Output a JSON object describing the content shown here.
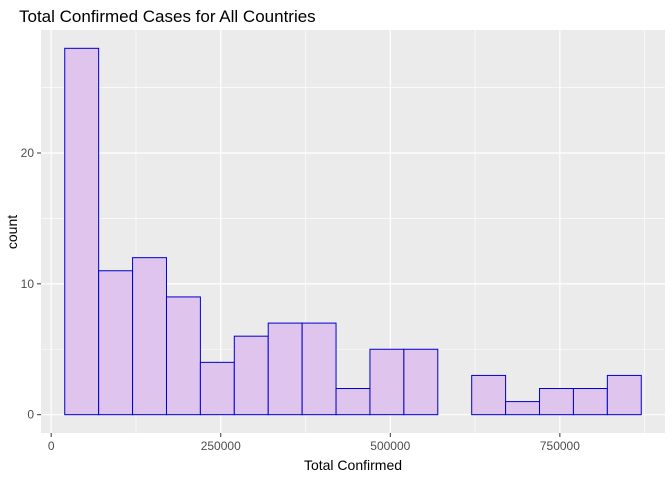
{
  "chart_data": {
    "type": "bar",
    "title": "Total Confirmed Cases for All Countries",
    "xlabel": "Total Confirmed",
    "ylabel": "count",
    "xlim": [
      -15000,
      905000
    ],
    "ylim": [
      -1.4,
      29.4
    ],
    "x_ticks": [
      0,
      250000,
      500000,
      750000
    ],
    "x_tick_labels": [
      "0",
      "250000",
      "500000",
      "750000"
    ],
    "y_ticks": [
      0,
      10,
      20
    ],
    "y_tick_labels": [
      "0",
      "10",
      "20"
    ],
    "bin_width": 50000,
    "bins": [
      {
        "x_start": 20000,
        "x_end": 70000,
        "count": 28
      },
      {
        "x_start": 70000,
        "x_end": 120000,
        "count": 11
      },
      {
        "x_start": 120000,
        "x_end": 170000,
        "count": 12
      },
      {
        "x_start": 170000,
        "x_end": 220000,
        "count": 9
      },
      {
        "x_start": 220000,
        "x_end": 270000,
        "count": 4
      },
      {
        "x_start": 270000,
        "x_end": 320000,
        "count": 6
      },
      {
        "x_start": 320000,
        "x_end": 370000,
        "count": 7
      },
      {
        "x_start": 370000,
        "x_end": 420000,
        "count": 7
      },
      {
        "x_start": 420000,
        "x_end": 470000,
        "count": 2
      },
      {
        "x_start": 470000,
        "x_end": 520000,
        "count": 5
      },
      {
        "x_start": 520000,
        "x_end": 570000,
        "count": 5
      },
      {
        "x_start": 570000,
        "x_end": 620000,
        "count": 0
      },
      {
        "x_start": 620000,
        "x_end": 670000,
        "count": 3
      },
      {
        "x_start": 670000,
        "x_end": 720000,
        "count": 1
      },
      {
        "x_start": 720000,
        "x_end": 770000,
        "count": 2
      },
      {
        "x_start": 770000,
        "x_end": 820000,
        "count": 2
      },
      {
        "x_start": 820000,
        "x_end": 870000,
        "count": 3
      }
    ],
    "bar_fill": "#dfc5ee",
    "bar_outline": "#0000cd",
    "panel_background": "#ebebeb",
    "grid": true,
    "grid_color": "#ffffff",
    "legend": "none"
  }
}
